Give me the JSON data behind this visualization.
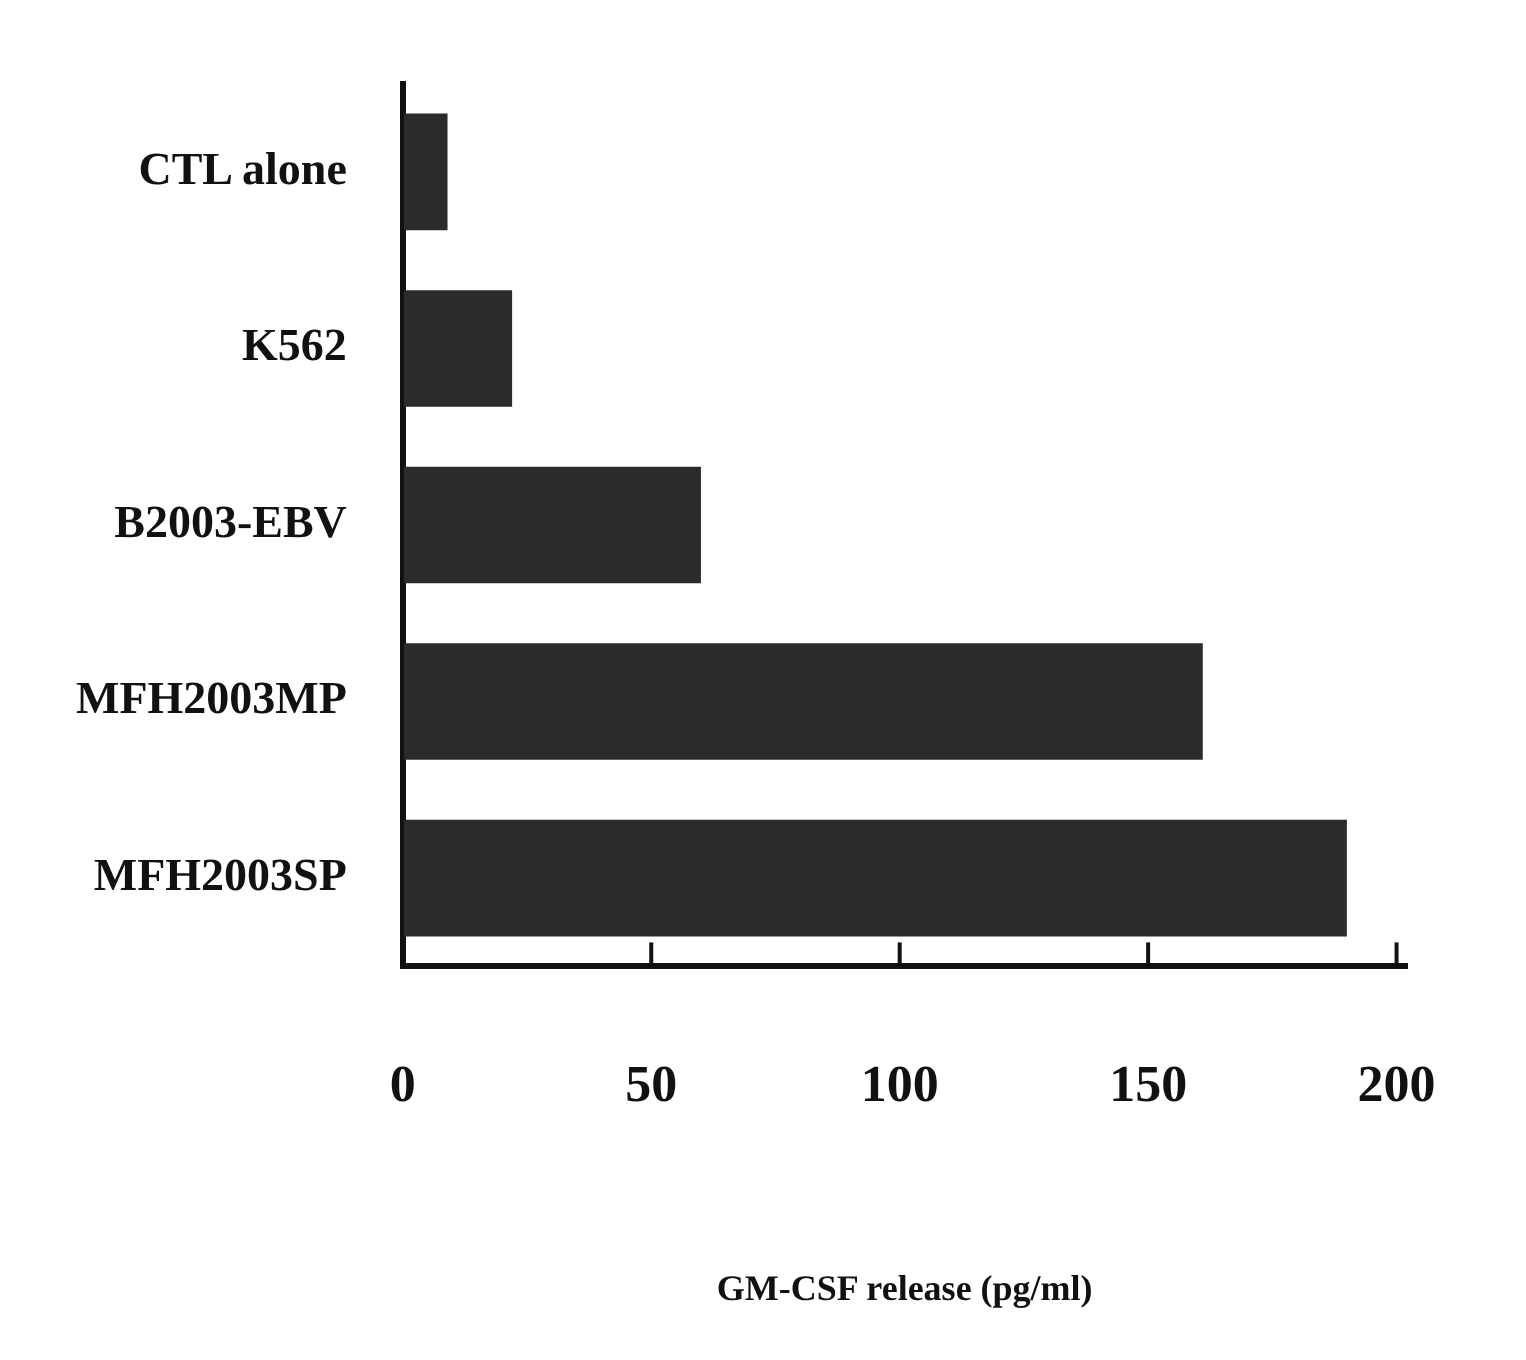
{
  "chart_data": {
    "type": "bar",
    "orientation": "horizontal",
    "xlabel": "GM-CSF release (pg/ml)",
    "categories": [
      "CTL alone",
      "K562",
      "B2003-EBV",
      "MFH2003MP",
      "MFH2003SP"
    ],
    "values": [
      9,
      22,
      60,
      161,
      190
    ],
    "color": "#2b2b2b",
    "xlim": [
      0,
      202
    ],
    "xticks": [
      0,
      50,
      100,
      150,
      200
    ],
    "grid": false,
    "legend": false
  }
}
